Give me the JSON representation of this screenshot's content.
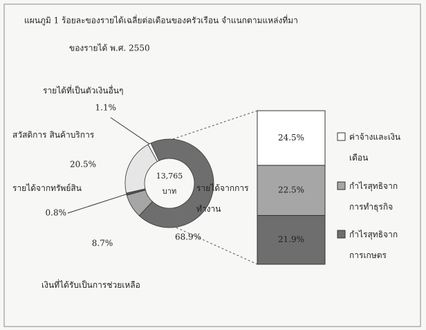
{
  "chart_data": {
    "type": "donut",
    "title": [
      "แผนภูมิ 1 ร้อยละของรายได้เฉลี่ยต่อเดือนของครัวเรือน จำแนกตามแหล่งที่มา",
      "ของรายได้ พ.ศ. 2550"
    ],
    "center_value": 13765,
    "center_value_label": "13,765",
    "center_unit": "บาท",
    "categories": [
      "รายได้จากการทำงาน",
      "เงินที่ได้รับเป็นการช่วยเหลือ",
      "รายได้จากทรัพย์สิน",
      "สวัสดิการ สินค้าบริการ",
      "รายได้ที่เป็นตัวเงินอื่นๆ"
    ],
    "values": [
      68.9,
      8.7,
      0.8,
      20.5,
      1.1
    ],
    "value_labels": [
      "68.9%",
      "8.7%",
      "0.8%",
      "20.5%",
      "1.1%"
    ],
    "colors": [
      "#6e6e6e",
      "#a6a6a6",
      "#555555",
      "#e6e6e6",
      "#ffffff"
    ],
    "breakdown": {
      "categories": [
        "ค่าจ้างและเงินเดือน",
        "กำไรสุทธิจากการทำธุรกิจ",
        "กำไรสุทธิจากการเกษตร"
      ],
      "values": [
        24.5,
        22.5,
        21.9
      ],
      "value_labels": [
        "24.5%",
        "22.5%",
        "21.9%"
      ],
      "colors": [
        "#ffffff",
        "#a6a6a6",
        "#6e6e6e"
      ]
    }
  }
}
